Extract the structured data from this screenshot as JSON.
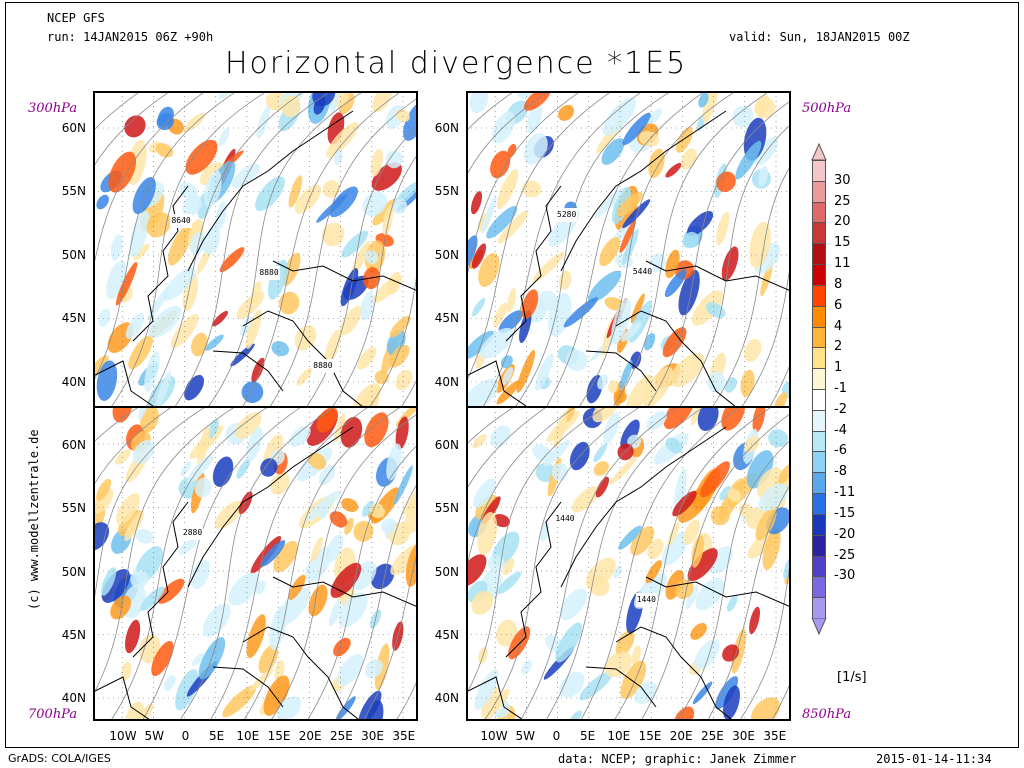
{
  "header": {
    "model": "NCEP GFS",
    "run": "run: 14JAN2015 06Z +90h",
    "valid": "valid: Sun, 18JAN2015 00Z",
    "title": "Horizontal divergence *1E5"
  },
  "levels": {
    "top_left": "300hPa",
    "top_right": "500hPa",
    "bottom_left": "700hPa",
    "bottom_right": "850hPa"
  },
  "credit": "(c) www.modellzentrale.de",
  "axes": {
    "lat_labels": [
      "60N",
      "55N",
      "50N",
      "45N",
      "40N"
    ],
    "lon_labels": [
      "10W",
      "5W",
      "0",
      "5E",
      "10E",
      "15E",
      "20E",
      "25E",
      "30E",
      "35E"
    ]
  },
  "contour_labels": {
    "top_left": [
      "8640",
      "8880",
      "8880"
    ],
    "top_right": [
      "5280",
      "5440"
    ],
    "bottom_left": [
      "2880"
    ],
    "bottom_right": [
      "1440",
      "1440"
    ]
  },
  "colorbar": {
    "unit": "[1/s]",
    "labels": [
      "30",
      "25",
      "20",
      "15",
      "11",
      "8",
      "6",
      "4",
      "2",
      "1",
      "-1",
      "-2",
      "-4",
      "-6",
      "-8",
      "-11",
      "-15",
      "-20",
      "-25",
      "-30"
    ],
    "colors": [
      "#f4c8c8",
      "#ec9a9a",
      "#e06a6a",
      "#c83838",
      "#b01010",
      "#cc0000",
      "#ff4400",
      "#ff8c00",
      "#ffb53a",
      "#ffe28a",
      "#fff6d6",
      "#ffffff",
      "#e4f6fb",
      "#b8eaf6",
      "#8ed3f4",
      "#5ca8ee",
      "#2a6fe6",
      "#1838b8",
      "#2a24a0",
      "#5040c8",
      "#7a6ae0",
      "#a898f2"
    ]
  },
  "footer": {
    "left": "GrADS: COLA/IGES",
    "middle": "data: NCEP; graphic: Janek Zimmer",
    "right": "2015-01-14-11:34"
  }
}
